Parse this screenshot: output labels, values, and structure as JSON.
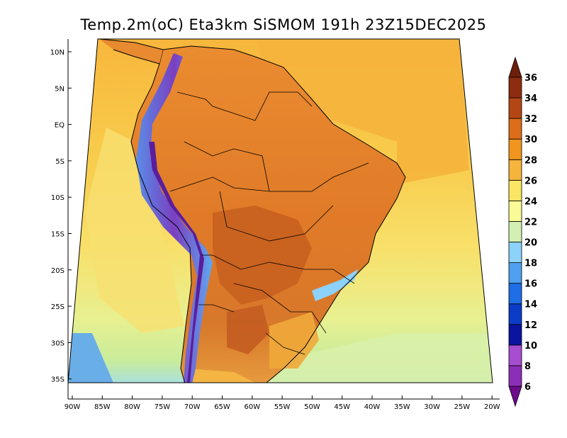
{
  "title": "Temp.2m(oC) Eta3km SiSMOM 191h 23Z15DEC2025",
  "map": {
    "lat_labels": [
      "10N",
      "5N",
      "EQ",
      "5S",
      "10S",
      "15S",
      "20S",
      "25S",
      "30S",
      "35S"
    ],
    "lon_labels": [
      "90W",
      "85W",
      "80W",
      "75W",
      "70W",
      "65W",
      "60W",
      "55W",
      "50W",
      "45W",
      "40W",
      "35W",
      "30W",
      "25W",
      "20W"
    ],
    "lat_range": [
      -38,
      11
    ],
    "lon_range": [
      -91,
      -20
    ]
  },
  "colorbar": {
    "labels": [
      "6",
      "8",
      "10",
      "12",
      "14",
      "16",
      "18",
      "20",
      "22",
      "24",
      "26",
      "28",
      "30",
      "32",
      "34",
      "36"
    ],
    "colors": [
      "#6e0a8c",
      "#8c2fb8",
      "#a64dd1",
      "#0a14a0",
      "#0a3cc8",
      "#1e6ee6",
      "#50a0f0",
      "#8cd2fa",
      "#d2f0b4",
      "#fafa96",
      "#fae664",
      "#f5b43c",
      "#f0961e",
      "#dc6e19",
      "#b44614",
      "#8c2d0f",
      "#6e1e0a"
    ]
  },
  "colors": {
    "ocean_warm": "#f8c24a",
    "ocean_mid": "#f5e070",
    "ocean_cool": "#cdeea0",
    "ocean_cold": "#9cd8f4",
    "land_hot": "#e07a2a",
    "land_very_hot": "#c25a20",
    "andes": "#7a3fc0"
  }
}
